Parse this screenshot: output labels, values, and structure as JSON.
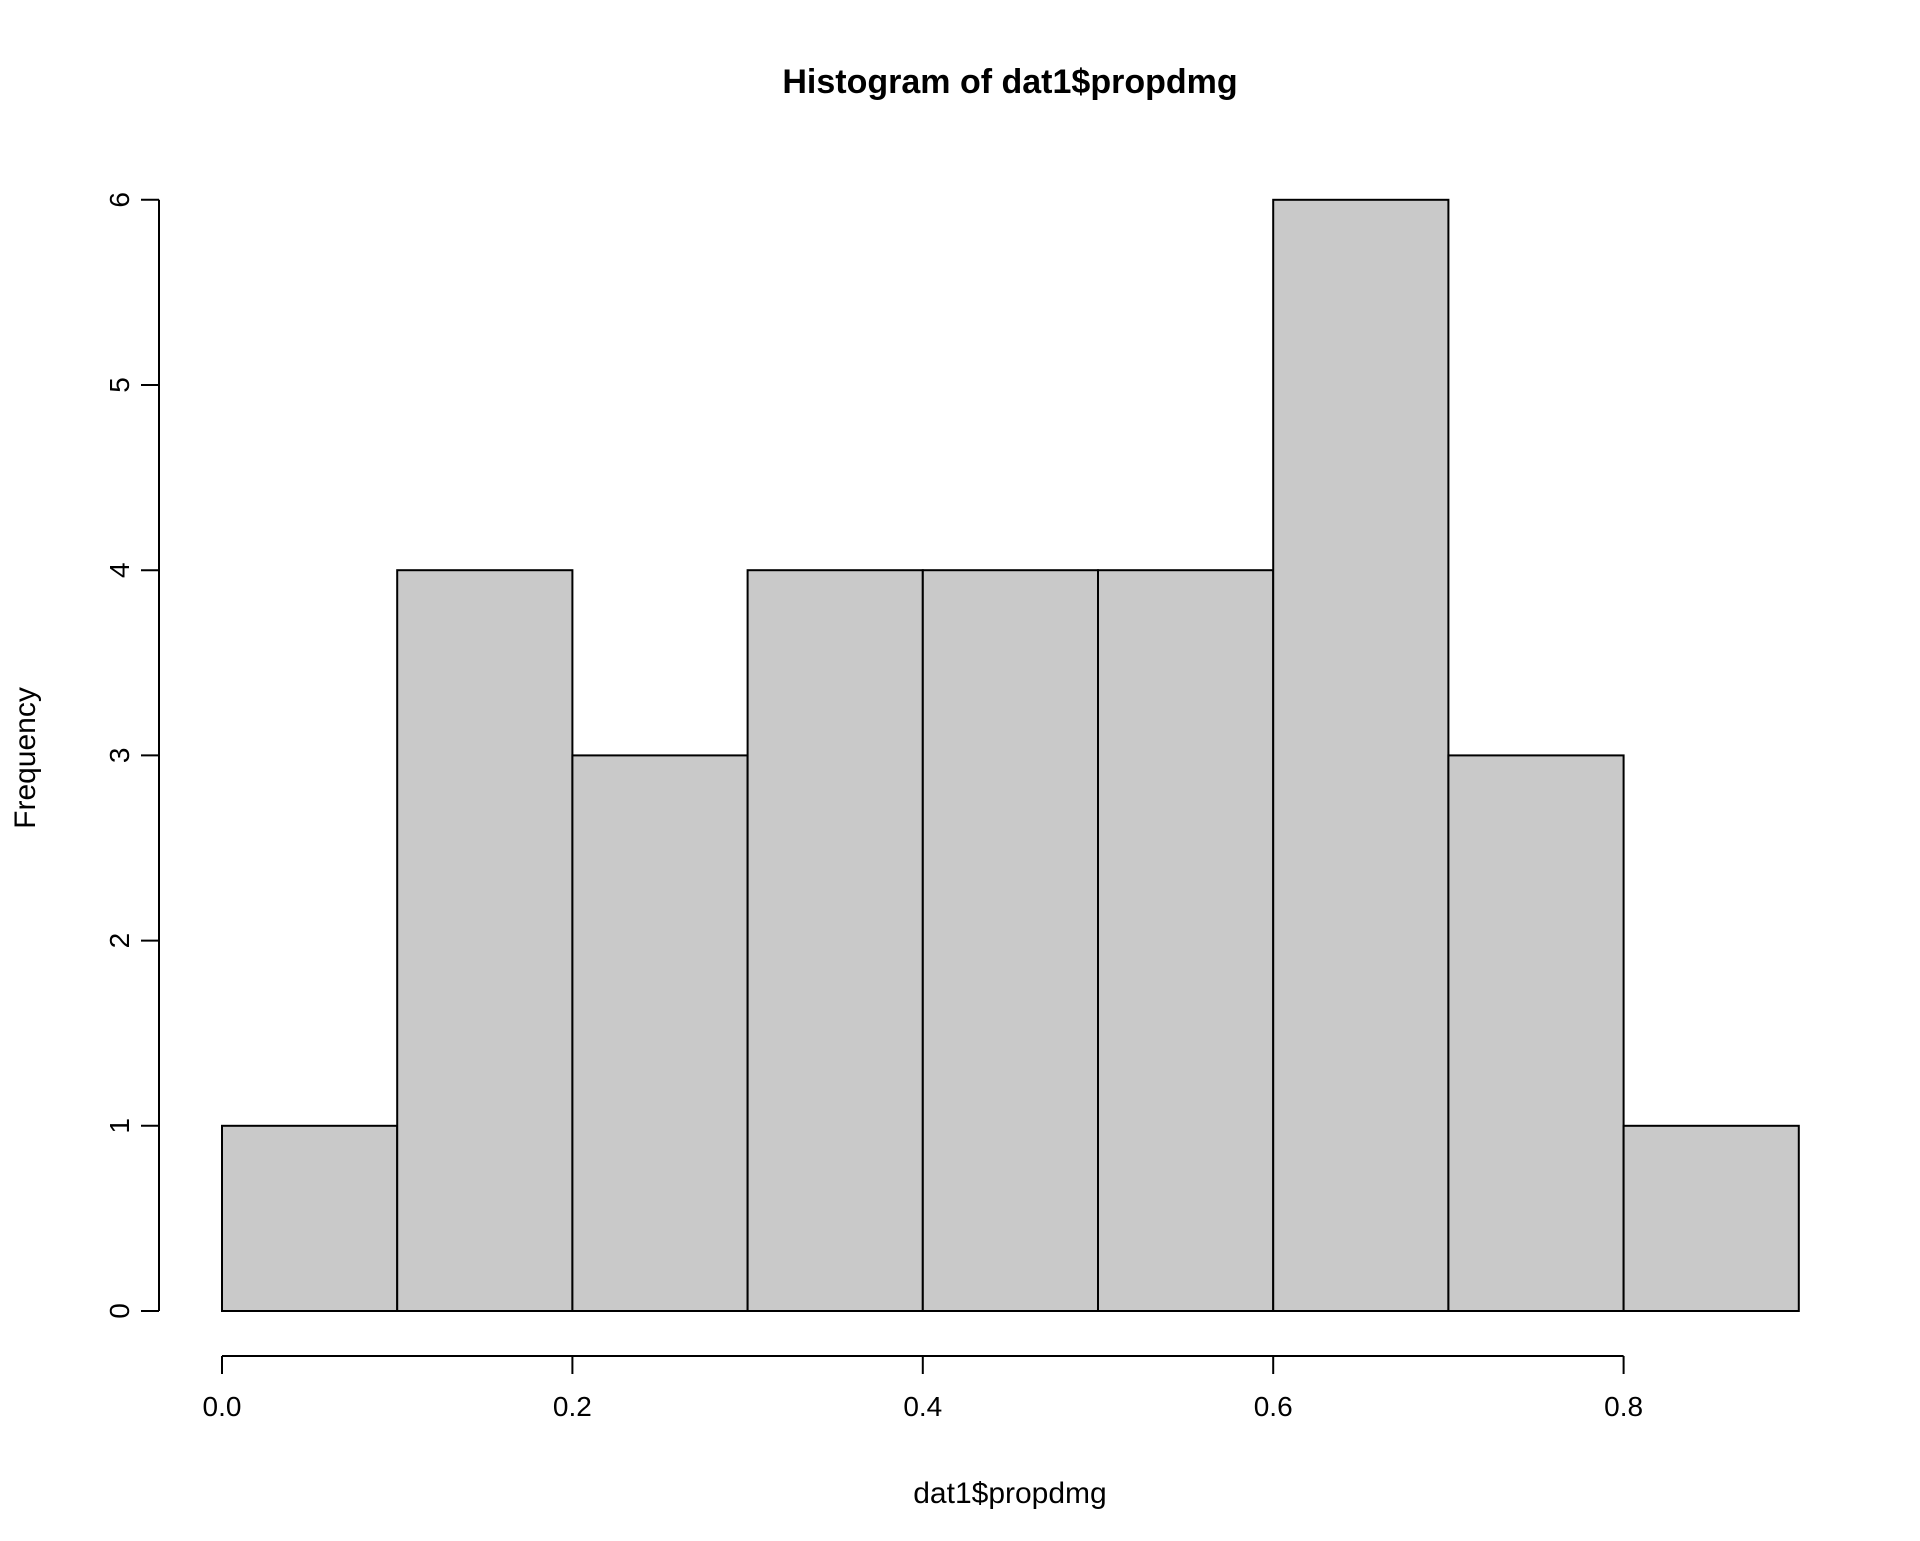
{
  "chart_data": {
    "type": "bar",
    "title": "Histogram of dat1$propdmg",
    "xlabel": "dat1$propdmg",
    "ylabel": "Frequency",
    "bins": [
      {
        "start": 0.0,
        "end": 0.1,
        "count": 1
      },
      {
        "start": 0.1,
        "end": 0.2,
        "count": 4
      },
      {
        "start": 0.2,
        "end": 0.3,
        "count": 3
      },
      {
        "start": 0.3,
        "end": 0.4,
        "count": 4
      },
      {
        "start": 0.4,
        "end": 0.5,
        "count": 4
      },
      {
        "start": 0.5,
        "end": 0.6,
        "count": 4
      },
      {
        "start": 0.6,
        "end": 0.7,
        "count": 6
      },
      {
        "start": 0.7,
        "end": 0.8,
        "count": 3
      },
      {
        "start": 0.8,
        "end": 0.9,
        "count": 1
      }
    ],
    "xlim": [
      0.0,
      0.9
    ],
    "ylim": [
      0,
      6
    ],
    "x_ticks": [
      "0.0",
      "0.2",
      "0.4",
      "0.6",
      "0.8"
    ],
    "y_ticks": [
      "0",
      "1",
      "2",
      "3",
      "4",
      "5",
      "6"
    ],
    "bar_color": "#c9c9c9",
    "grid": false
  }
}
